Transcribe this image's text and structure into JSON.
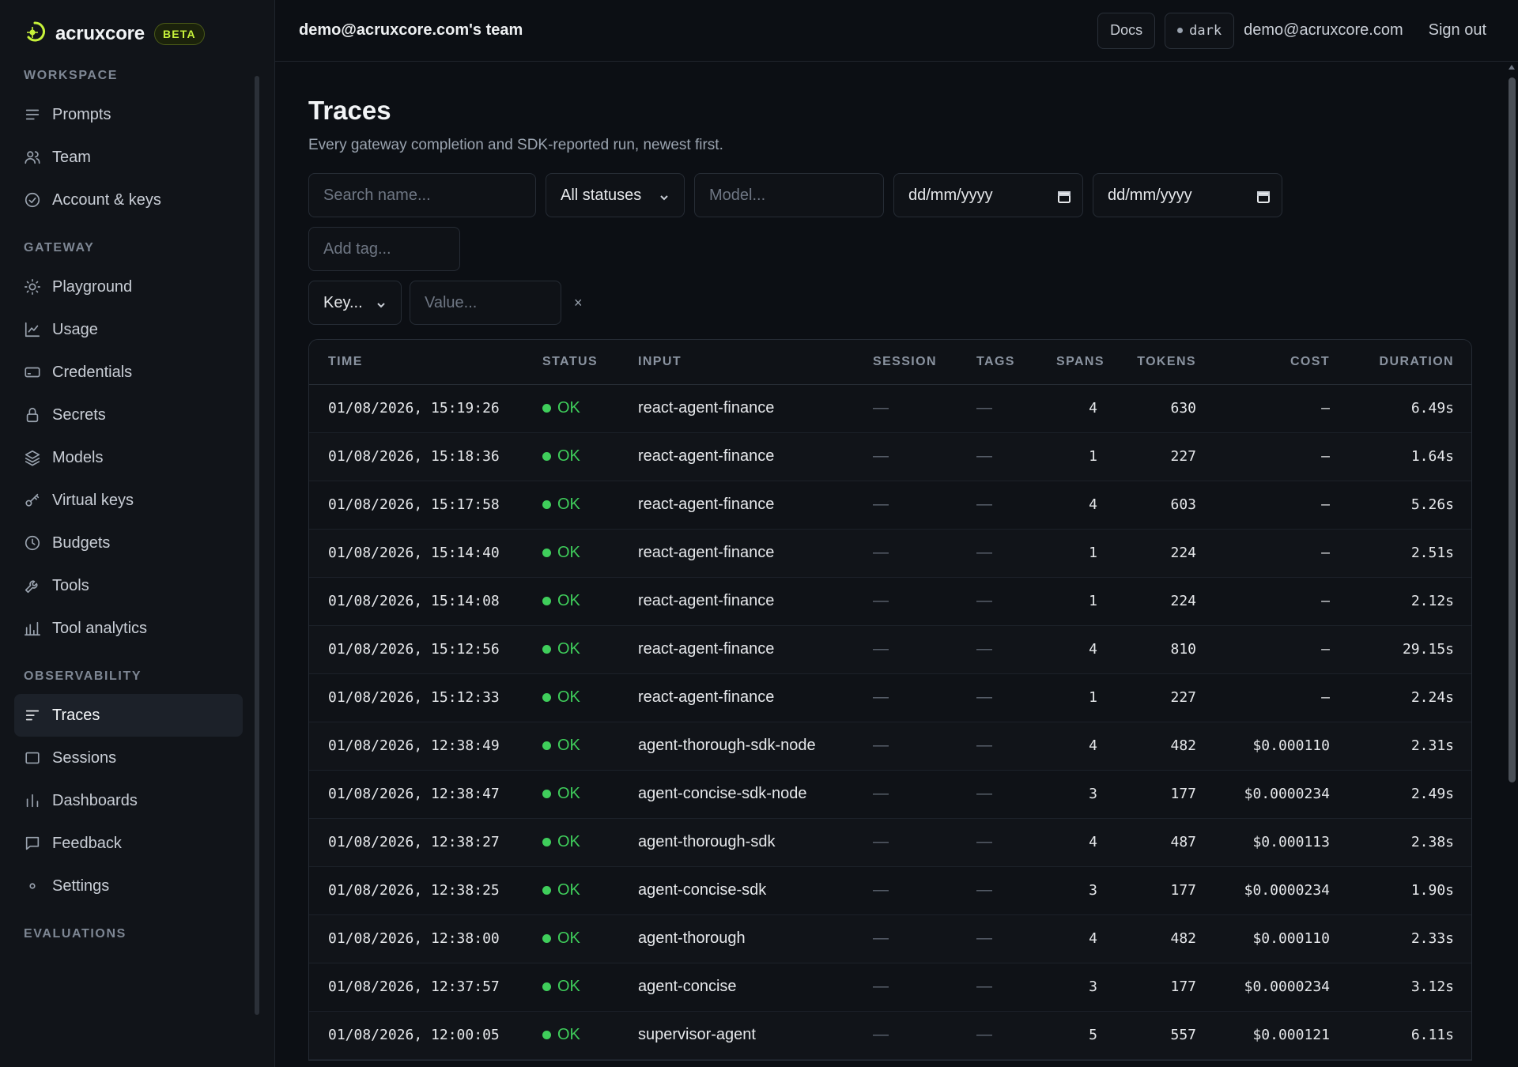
{
  "brand": {
    "name": "acruxcore",
    "badge": "BETA",
    "accent": "#c7f23a"
  },
  "sidebar": {
    "sections": [
      {
        "label": "WORKSPACE",
        "items": [
          {
            "label": "Prompts",
            "icon": "list-icon"
          },
          {
            "label": "Team",
            "icon": "users-icon"
          },
          {
            "label": "Account & keys",
            "icon": "check-circle-icon"
          }
        ]
      },
      {
        "label": "GATEWAY",
        "items": [
          {
            "label": "Playground",
            "icon": "sun-icon"
          },
          {
            "label": "Usage",
            "icon": "line-chart-icon"
          },
          {
            "label": "Credentials",
            "icon": "card-icon"
          },
          {
            "label": "Secrets",
            "icon": "lock-icon"
          },
          {
            "label": "Models",
            "icon": "layers-icon"
          },
          {
            "label": "Virtual keys",
            "icon": "key-icon"
          },
          {
            "label": "Budgets",
            "icon": "clock-icon"
          },
          {
            "label": "Tools",
            "icon": "wrench-icon"
          },
          {
            "label": "Tool analytics",
            "icon": "bar-chart-icon"
          }
        ]
      },
      {
        "label": "OBSERVABILITY",
        "items": [
          {
            "label": "Traces",
            "icon": "traces-icon",
            "active": true
          },
          {
            "label": "Sessions",
            "icon": "square-icon"
          },
          {
            "label": "Dashboards",
            "icon": "bars-icon"
          },
          {
            "label": "Feedback",
            "icon": "message-icon"
          },
          {
            "label": "Settings",
            "icon": "dot-icon"
          }
        ]
      },
      {
        "label": "EVALUATIONS",
        "items": []
      }
    ]
  },
  "topbar": {
    "team": "demo@acruxcore.com's team",
    "docs": "Docs",
    "theme": "dark",
    "email": "demo@acruxcore.com",
    "sign_out": "Sign out"
  },
  "page": {
    "title": "Traces",
    "subtitle": "Every gateway completion and SDK-reported run, newest first."
  },
  "filters": {
    "search_placeholder": "Search name...",
    "status_value": "All statuses",
    "model_placeholder": "Model...",
    "date_from": "dd/mm/yyyy",
    "date_to": "dd/mm/yyyy",
    "tag_placeholder": "Add tag...",
    "key_value": "Key...",
    "value_placeholder": "Value...",
    "clear": "×"
  },
  "table": {
    "columns": [
      "TIME",
      "STATUS",
      "INPUT",
      "SESSION",
      "TAGS",
      "SPANS",
      "TOKENS",
      "COST",
      "DURATION"
    ],
    "rows": [
      {
        "time": "01/08/2026, 15:19:26",
        "status": "OK",
        "input": "react-agent-finance",
        "session": "—",
        "tags": "—",
        "spans": "4",
        "tokens": "630",
        "cost": "–",
        "duration": "6.49s"
      },
      {
        "time": "01/08/2026, 15:18:36",
        "status": "OK",
        "input": "react-agent-finance",
        "session": "—",
        "tags": "—",
        "spans": "1",
        "tokens": "227",
        "cost": "–",
        "duration": "1.64s"
      },
      {
        "time": "01/08/2026, 15:17:58",
        "status": "OK",
        "input": "react-agent-finance",
        "session": "—",
        "tags": "—",
        "spans": "4",
        "tokens": "603",
        "cost": "–",
        "duration": "5.26s"
      },
      {
        "time": "01/08/2026, 15:14:40",
        "status": "OK",
        "input": "react-agent-finance",
        "session": "—",
        "tags": "—",
        "spans": "1",
        "tokens": "224",
        "cost": "–",
        "duration": "2.51s"
      },
      {
        "time": "01/08/2026, 15:14:08",
        "status": "OK",
        "input": "react-agent-finance",
        "session": "—",
        "tags": "—",
        "spans": "1",
        "tokens": "224",
        "cost": "–",
        "duration": "2.12s"
      },
      {
        "time": "01/08/2026, 15:12:56",
        "status": "OK",
        "input": "react-agent-finance",
        "session": "—",
        "tags": "—",
        "spans": "4",
        "tokens": "810",
        "cost": "–",
        "duration": "29.15s"
      },
      {
        "time": "01/08/2026, 15:12:33",
        "status": "OK",
        "input": "react-agent-finance",
        "session": "—",
        "tags": "—",
        "spans": "1",
        "tokens": "227",
        "cost": "–",
        "duration": "2.24s"
      },
      {
        "time": "01/08/2026, 12:38:49",
        "status": "OK",
        "input": "agent-thorough-sdk-node",
        "session": "—",
        "tags": "—",
        "spans": "4",
        "tokens": "482",
        "cost": "$0.000110",
        "duration": "2.31s"
      },
      {
        "time": "01/08/2026, 12:38:47",
        "status": "OK",
        "input": "agent-concise-sdk-node",
        "session": "—",
        "tags": "—",
        "spans": "3",
        "tokens": "177",
        "cost": "$0.0000234",
        "duration": "2.49s"
      },
      {
        "time": "01/08/2026, 12:38:27",
        "status": "OK",
        "input": "agent-thorough-sdk",
        "session": "—",
        "tags": "—",
        "spans": "4",
        "tokens": "487",
        "cost": "$0.000113",
        "duration": "2.38s"
      },
      {
        "time": "01/08/2026, 12:38:25",
        "status": "OK",
        "input": "agent-concise-sdk",
        "session": "—",
        "tags": "—",
        "spans": "3",
        "tokens": "177",
        "cost": "$0.0000234",
        "duration": "1.90s"
      },
      {
        "time": "01/08/2026, 12:38:00",
        "status": "OK",
        "input": "agent-thorough",
        "session": "—",
        "tags": "—",
        "spans": "4",
        "tokens": "482",
        "cost": "$0.000110",
        "duration": "2.33s"
      },
      {
        "time": "01/08/2026, 12:37:57",
        "status": "OK",
        "input": "agent-concise",
        "session": "—",
        "tags": "—",
        "spans": "3",
        "tokens": "177",
        "cost": "$0.0000234",
        "duration": "3.12s"
      },
      {
        "time": "01/08/2026, 12:00:05",
        "status": "OK",
        "input": "supervisor-agent",
        "session": "—",
        "tags": "—",
        "spans": "5",
        "tokens": "557",
        "cost": "$0.000121",
        "duration": "6.11s"
      }
    ]
  },
  "colors": {
    "ok": "#3fce5b",
    "background": "#0c0f14",
    "sidebar": "#111419"
  }
}
